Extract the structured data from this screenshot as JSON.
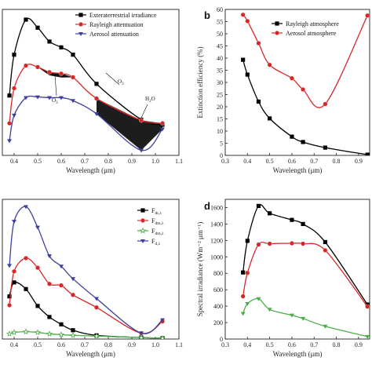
{
  "chart_data": [
    {
      "panel": "",
      "type": "line",
      "xlabel": "Wavelength (μm)",
      "ylabel": "",
      "xlim": [
        0.35,
        1.1
      ],
      "ylim": [
        0,
        2.0
      ],
      "xticks": [
        "0.4",
        "0.5",
        "0.6",
        "0.7",
        "0.8",
        "0.9",
        "1.0",
        "1.1"
      ],
      "legend": "top-right",
      "series": [
        {
          "name": "Exteraterrestrial irradiance",
          "color": "#000000",
          "marker": "square",
          "x": [
            0.38,
            0.4,
            0.45,
            0.5,
            0.55,
            0.6,
            0.65,
            0.75,
            0.94,
            1.03
          ],
          "y": [
            0.82,
            1.38,
            1.86,
            1.75,
            1.56,
            1.48,
            1.38,
            0.98,
            0.49,
            0.42
          ]
        },
        {
          "name": "Rayleigh attentuation",
          "color": "#d62728",
          "marker": "circle",
          "x": [
            0.38,
            0.4,
            0.45,
            0.5,
            0.55,
            0.6,
            0.65,
            0.75,
            0.94,
            1.03
          ],
          "y": [
            0.44,
            0.92,
            1.23,
            1.21,
            1.14,
            1.12,
            1.07,
            0.78,
            0.48,
            0.44
          ]
        },
        {
          "name": "Aerosol attenuation",
          "color": "#3b3f9e",
          "marker": "triangle",
          "x": [
            0.38,
            0.4,
            0.45,
            0.5,
            0.55,
            0.6,
            0.65,
            0.75,
            0.94,
            1.03
          ],
          "y": [
            0.2,
            0.55,
            0.79,
            0.8,
            0.79,
            0.79,
            0.75,
            0.57,
            0.07,
            0.36
          ]
        }
      ],
      "annotations": [
        "O3",
        "O3",
        "H2O"
      ]
    },
    {
      "panel": "b",
      "type": "line",
      "xlabel": "Wavelength (μm)",
      "ylabel": "Extinction efficiency (%)",
      "xlim": [
        0.3,
        0.95
      ],
      "ylim": [
        0,
        60
      ],
      "xticks": [
        "0.3",
        "0.4",
        "0.5",
        "0.6",
        "0.7",
        "0.8",
        "0.9"
      ],
      "yticks": [
        "0",
        "5",
        "10",
        "15",
        "20",
        "25",
        "30",
        "35",
        "40",
        "45",
        "50",
        "55",
        "60"
      ],
      "legend": "top-right",
      "series": [
        {
          "name": "Rayleigh atmosphere",
          "color": "#000000",
          "marker": "square",
          "x": [
            0.38,
            0.4,
            0.45,
            0.5,
            0.6,
            0.65,
            0.75,
            0.94
          ],
          "y": [
            39.3,
            33.2,
            22.1,
            15.2,
            7.7,
            5.5,
            3.2,
            0.3
          ]
        },
        {
          "name": "Aerosol atmosphere",
          "color": "#d62728",
          "marker": "circle",
          "x": [
            0.38,
            0.4,
            0.45,
            0.5,
            0.6,
            0.65,
            0.75,
            0.94
          ],
          "y": [
            57.8,
            55.2,
            46.1,
            37.2,
            31.7,
            27.1,
            21.1,
            57.5
          ]
        }
      ]
    },
    {
      "panel": "",
      "type": "line",
      "xlabel": "Wavelength (μm)",
      "ylabel": "",
      "xlim": [
        0.35,
        1.1
      ],
      "ylim": [
        0,
        1.9
      ],
      "xticks": [
        "0.4",
        "0.5",
        "0.6",
        "0.7",
        "0.8",
        "0.9",
        "1.0",
        "1.1"
      ],
      "legend": "top-right",
      "series": [
        {
          "name": "F_dr,λ",
          "label_main": "F",
          "label_sub": "dr,λ",
          "color": "#000000",
          "marker": "square",
          "x": [
            0.38,
            0.4,
            0.45,
            0.5,
            0.55,
            0.6,
            0.65,
            0.75,
            0.94,
            1.03
          ],
          "y": [
            0.58,
            0.77,
            0.68,
            0.45,
            0.3,
            0.2,
            0.12,
            0.05,
            0.02,
            0.01
          ]
        },
        {
          "name": "F_dm,λ",
          "label_main": "F",
          "label_sub": "dm,λ",
          "color": "#d62728",
          "marker": "circle",
          "x": [
            0.38,
            0.4,
            0.45,
            0.5,
            0.55,
            0.6,
            0.65,
            0.75,
            0.94,
            1.03
          ],
          "y": [
            0.46,
            0.92,
            1.1,
            0.97,
            0.75,
            0.73,
            0.6,
            0.43,
            0.08,
            0.24
          ]
        },
        {
          "name": "F_dm,λ",
          "label_main": "F",
          "label_sub": "dm,λ",
          "color": "#4daf4a",
          "marker": "star",
          "x": [
            0.38,
            0.4,
            0.45,
            0.5,
            0.55,
            0.6,
            0.65,
            0.75,
            0.94,
            1.03
          ],
          "y": [
            0.07,
            0.09,
            0.1,
            0.09,
            0.07,
            0.06,
            0.05,
            0.04,
            0.02,
            0.01
          ]
        },
        {
          "name": "F_d,λ",
          "label_main": "F",
          "label_sub": "d,λ",
          "color": "#3b3f9e",
          "marker": "triangle",
          "x": [
            0.38,
            0.4,
            0.45,
            0.5,
            0.55,
            0.6,
            0.65,
            0.75,
            0.94,
            1.03
          ],
          "y": [
            1.0,
            1.6,
            1.8,
            1.52,
            1.13,
            0.99,
            0.82,
            0.55,
            0.08,
            0.26
          ]
        }
      ]
    },
    {
      "panel": "d",
      "type": "line",
      "xlabel": "Wavelength (μm)",
      "ylabel": "Spectral irradiance (Wm⁻² μm⁻¹)",
      "xlim": [
        0.3,
        0.95
      ],
      "ylim": [
        0,
        1700
      ],
      "xticks": [
        "0.3",
        "0.4",
        "0.5",
        "0.6",
        "0.7",
        "0.8",
        "0.9"
      ],
      "yticks": [
        "0",
        "200",
        "400",
        "600",
        "800",
        "1000",
        "1200",
        "1400",
        "1600"
      ],
      "series": [
        {
          "name": "",
          "color": "#000000",
          "marker": "square",
          "x": [
            0.38,
            0.4,
            0.45,
            0.5,
            0.6,
            0.65,
            0.75,
            0.94
          ],
          "y": [
            810,
            1195,
            1620,
            1530,
            1450,
            1400,
            1180,
            420
          ]
        },
        {
          "name": "",
          "color": "#d62728",
          "marker": "circle",
          "x": [
            0.38,
            0.4,
            0.45,
            0.5,
            0.6,
            0.65,
            0.75,
            0.94
          ],
          "y": [
            520,
            805,
            1150,
            1160,
            1165,
            1160,
            1080,
            395
          ]
        },
        {
          "name": "",
          "color": "#4daf4a",
          "marker": "triangle",
          "x": [
            0.38,
            0.4,
            0.45,
            0.5,
            0.6,
            0.65,
            0.75,
            0.94
          ],
          "y": [
            310,
            430,
            490,
            360,
            290,
            250,
            155,
            30
          ]
        }
      ]
    }
  ]
}
